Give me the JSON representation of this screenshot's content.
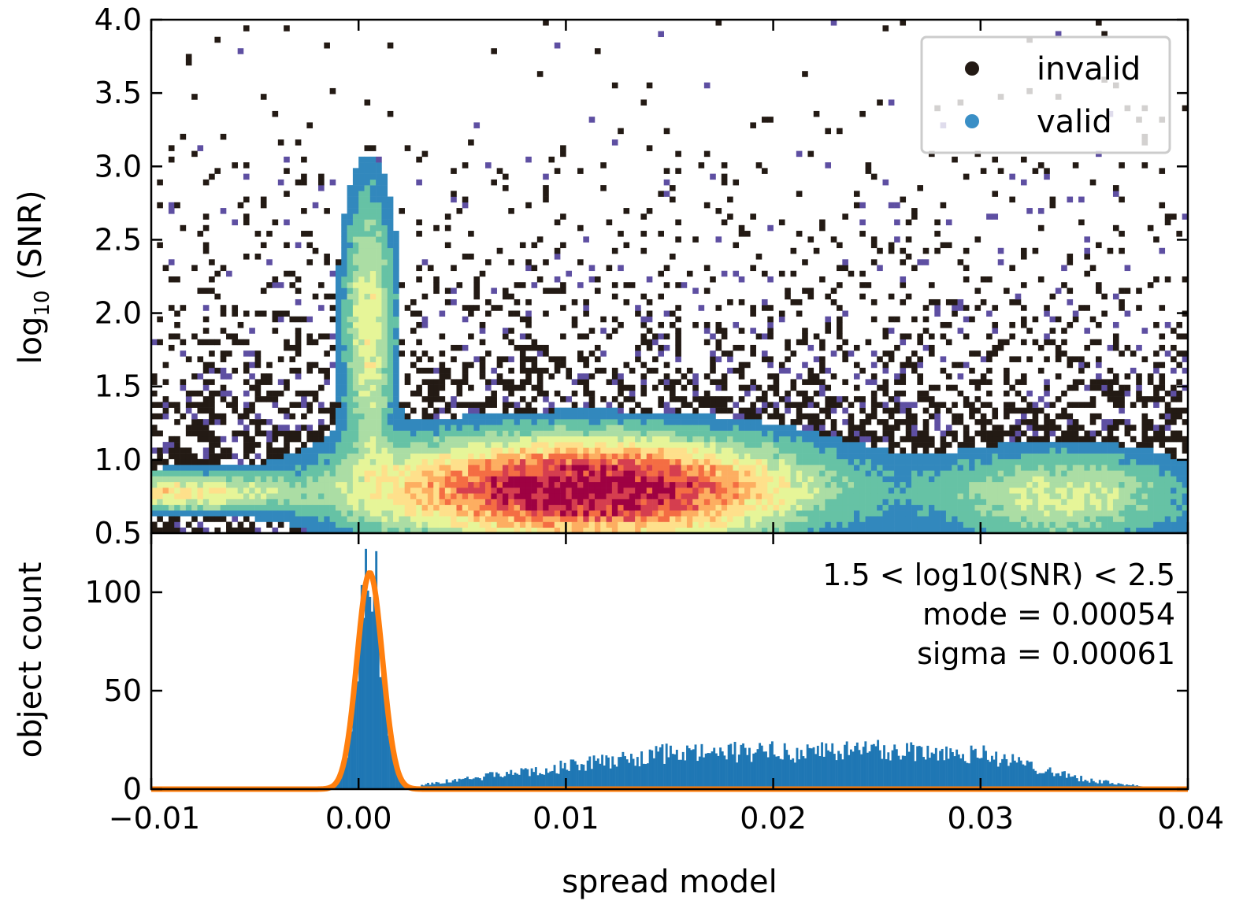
{
  "chart_data": [
    {
      "type": "heatmap",
      "panel": "top",
      "description_of_density": "2D histogram of valid objects (color = count) over invalid objects (black)",
      "xlim": [
        -0.01,
        0.04
      ],
      "ylim": [
        0.5,
        4.0
      ],
      "ylabel_main": "log",
      "ylabel_sub": "10",
      "ylabel_rest": " (SNR)",
      "yticks": [
        "0.5",
        "1.0",
        "1.5",
        "2.0",
        "2.5",
        "3.0",
        "3.5",
        "4.0"
      ],
      "ytick_values": [
        0.5,
        1.0,
        1.5,
        2.0,
        2.5,
        3.0,
        3.5,
        4.0
      ],
      "legend": [
        {
          "label": "invalid",
          "color": "#231a14"
        },
        {
          "label": "valid",
          "color": "#3a8fc6"
        }
      ],
      "colormap": [
        "#5e4fa2",
        "#3288bd",
        "#66c2a5",
        "#abdda4",
        "#e6f598",
        "#fee08b",
        "#fdae61",
        "#f46d43",
        "#d53e4f",
        "#9e0142"
      ],
      "density_clusters": [
        {
          "x": 0.011,
          "y": 0.8,
          "sx": 0.0065,
          "sy": 0.22,
          "w": 1.0
        },
        {
          "x": 0.0005,
          "y": 1.9,
          "sx": 0.0008,
          "sy": 0.6,
          "w": 0.35
        },
        {
          "x": -0.009,
          "y": 0.78,
          "sx": 0.004,
          "sy": 0.08,
          "w": 0.4
        },
        {
          "x": 0.034,
          "y": 0.75,
          "sx": 0.004,
          "sy": 0.2,
          "w": 0.3
        }
      ]
    },
    {
      "type": "bar",
      "panel": "bottom",
      "xlabel": "spread model",
      "ylabel": "object count",
      "xlim": [
        -0.01,
        0.04
      ],
      "ylim": [
        0,
        130
      ],
      "xticks": [
        "−0.01",
        "0.00",
        "0.01",
        "0.02",
        "0.03",
        "0.04"
      ],
      "xtick_values": [
        -0.01,
        0.0,
        0.01,
        0.02,
        0.03,
        0.04
      ],
      "yticks": [
        "0",
        "50",
        "100"
      ],
      "ytick_values": [
        0,
        50,
        100
      ],
      "bar_color": "#1f77b4",
      "fit_color": "#ff7f0e",
      "histogram_model": {
        "peak": {
          "center": 0.00054,
          "sigma": 0.00061,
          "amplitude": 110
        },
        "broad": {
          "start": 0.003,
          "end": 0.038,
          "level_at_0.005": 5,
          "level_at_0.015": 18,
          "level_at_0.025": 20,
          "level_at_0.03": 18,
          "level_at_0.035": 5
        }
      },
      "fit": {
        "type": "gaussian",
        "mode": 0.00054,
        "sigma": 0.00061,
        "amplitude": 110
      },
      "annotation": [
        "1.5 < log10(SNR) < 2.5",
        "mode = 0.00054",
        "sigma = 0.00061"
      ]
    }
  ]
}
